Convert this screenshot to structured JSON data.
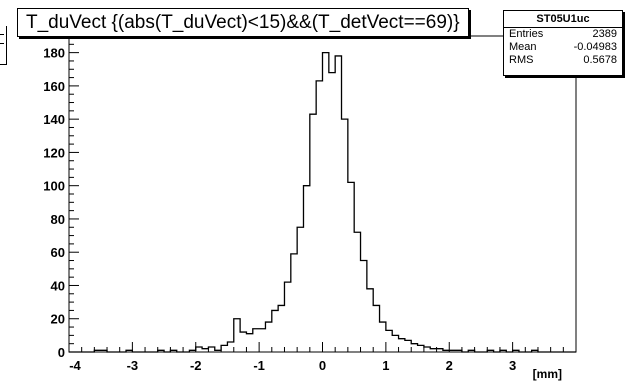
{
  "title": "T_duVect {(abs(T_duVect)<15)&&(T_detVect==69)}",
  "stats": {
    "name": "ST05U1uc",
    "rows": [
      {
        "label": "Entries",
        "value": "2389"
      },
      {
        "label": "Mean",
        "value": "-0.04983"
      },
      {
        "label": "RMS",
        "value": "0.5678"
      }
    ]
  },
  "chart_data": {
    "type": "bar",
    "title": "T_duVect {(abs(T_duVect)<15)&&(T_detVect==69)}",
    "xlabel": "[mm]",
    "ylabel": "",
    "xlim": [
      -4,
      4
    ],
    "ylim": [
      0,
      190
    ],
    "xticks": [
      -4,
      -3,
      -2,
      -1,
      0,
      1,
      2,
      3
    ],
    "yticks": [
      0,
      20,
      40,
      60,
      80,
      100,
      120,
      140,
      160,
      180
    ],
    "bin_width": 0.1,
    "bin_centers": [
      -3.95,
      -3.85,
      -3.75,
      -3.65,
      -3.55,
      -3.45,
      -3.35,
      -3.25,
      -3.15,
      -3.05,
      -2.95,
      -2.85,
      -2.75,
      -2.65,
      -2.55,
      -2.45,
      -2.35,
      -2.25,
      -2.15,
      -2.05,
      -1.95,
      -1.85,
      -1.75,
      -1.65,
      -1.55,
      -1.45,
      -1.35,
      -1.25,
      -1.15,
      -1.05,
      -0.95,
      -0.85,
      -0.75,
      -0.65,
      -0.55,
      -0.45,
      -0.35,
      -0.25,
      -0.15,
      -0.05,
      0.05,
      0.15,
      0.25,
      0.35,
      0.45,
      0.55,
      0.65,
      0.75,
      0.85,
      0.95,
      1.05,
      1.15,
      1.25,
      1.35,
      1.45,
      1.55,
      1.65,
      1.75,
      1.85,
      1.95,
      2.05,
      2.15,
      2.25,
      2.35,
      2.45,
      2.55,
      2.65,
      2.75,
      2.85,
      2.95,
      3.05,
      3.15,
      3.25,
      3.35,
      3.45,
      3.55,
      3.65,
      3.75,
      3.85,
      3.95
    ],
    "values": [
      0,
      0,
      0,
      0,
      1,
      1,
      0,
      0,
      0,
      1,
      0,
      0,
      0,
      0,
      1,
      0,
      1,
      0,
      0,
      1,
      3,
      2,
      3,
      1,
      4,
      6,
      20,
      12,
      11,
      14,
      14,
      18,
      25,
      28,
      42,
      59,
      75,
      100,
      143,
      163,
      180,
      168,
      178,
      140,
      102,
      72,
      55,
      38,
      28,
      18,
      13,
      10,
      8,
      7,
      5,
      4,
      3,
      2,
      2,
      1,
      1,
      1,
      0,
      1,
      0,
      0,
      1,
      0,
      1,
      0,
      1,
      0,
      0,
      1,
      0,
      0,
      0,
      0,
      0,
      0
    ],
    "grid": false,
    "legend": "none"
  }
}
